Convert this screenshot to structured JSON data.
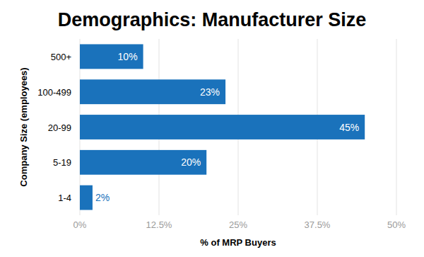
{
  "chart_data": {
    "type": "bar",
    "orientation": "horizontal",
    "title": "Demographics: Manufacturer Size",
    "x_label": "% of MRP Buyers",
    "y_label": "Company Size (employees)",
    "categories": [
      "500+",
      "100-499",
      "20-99",
      "5-19",
      "1-4"
    ],
    "values": [
      10,
      23,
      45,
      20,
      2
    ],
    "value_labels": [
      "10%",
      "23%",
      "45%",
      "20%",
      "2%"
    ],
    "data_labels": true,
    "color": "#1a72bb",
    "xlim": [
      0,
      50
    ],
    "xticks": [
      {
        "value": 0,
        "label": "0%"
      },
      {
        "value": 12.5,
        "label": "12.5%"
      },
      {
        "value": 25,
        "label": "25%"
      },
      {
        "value": 37.5,
        "label": "37.5%"
      },
      {
        "value": 50,
        "label": "50%"
      }
    ],
    "grid": true
  }
}
